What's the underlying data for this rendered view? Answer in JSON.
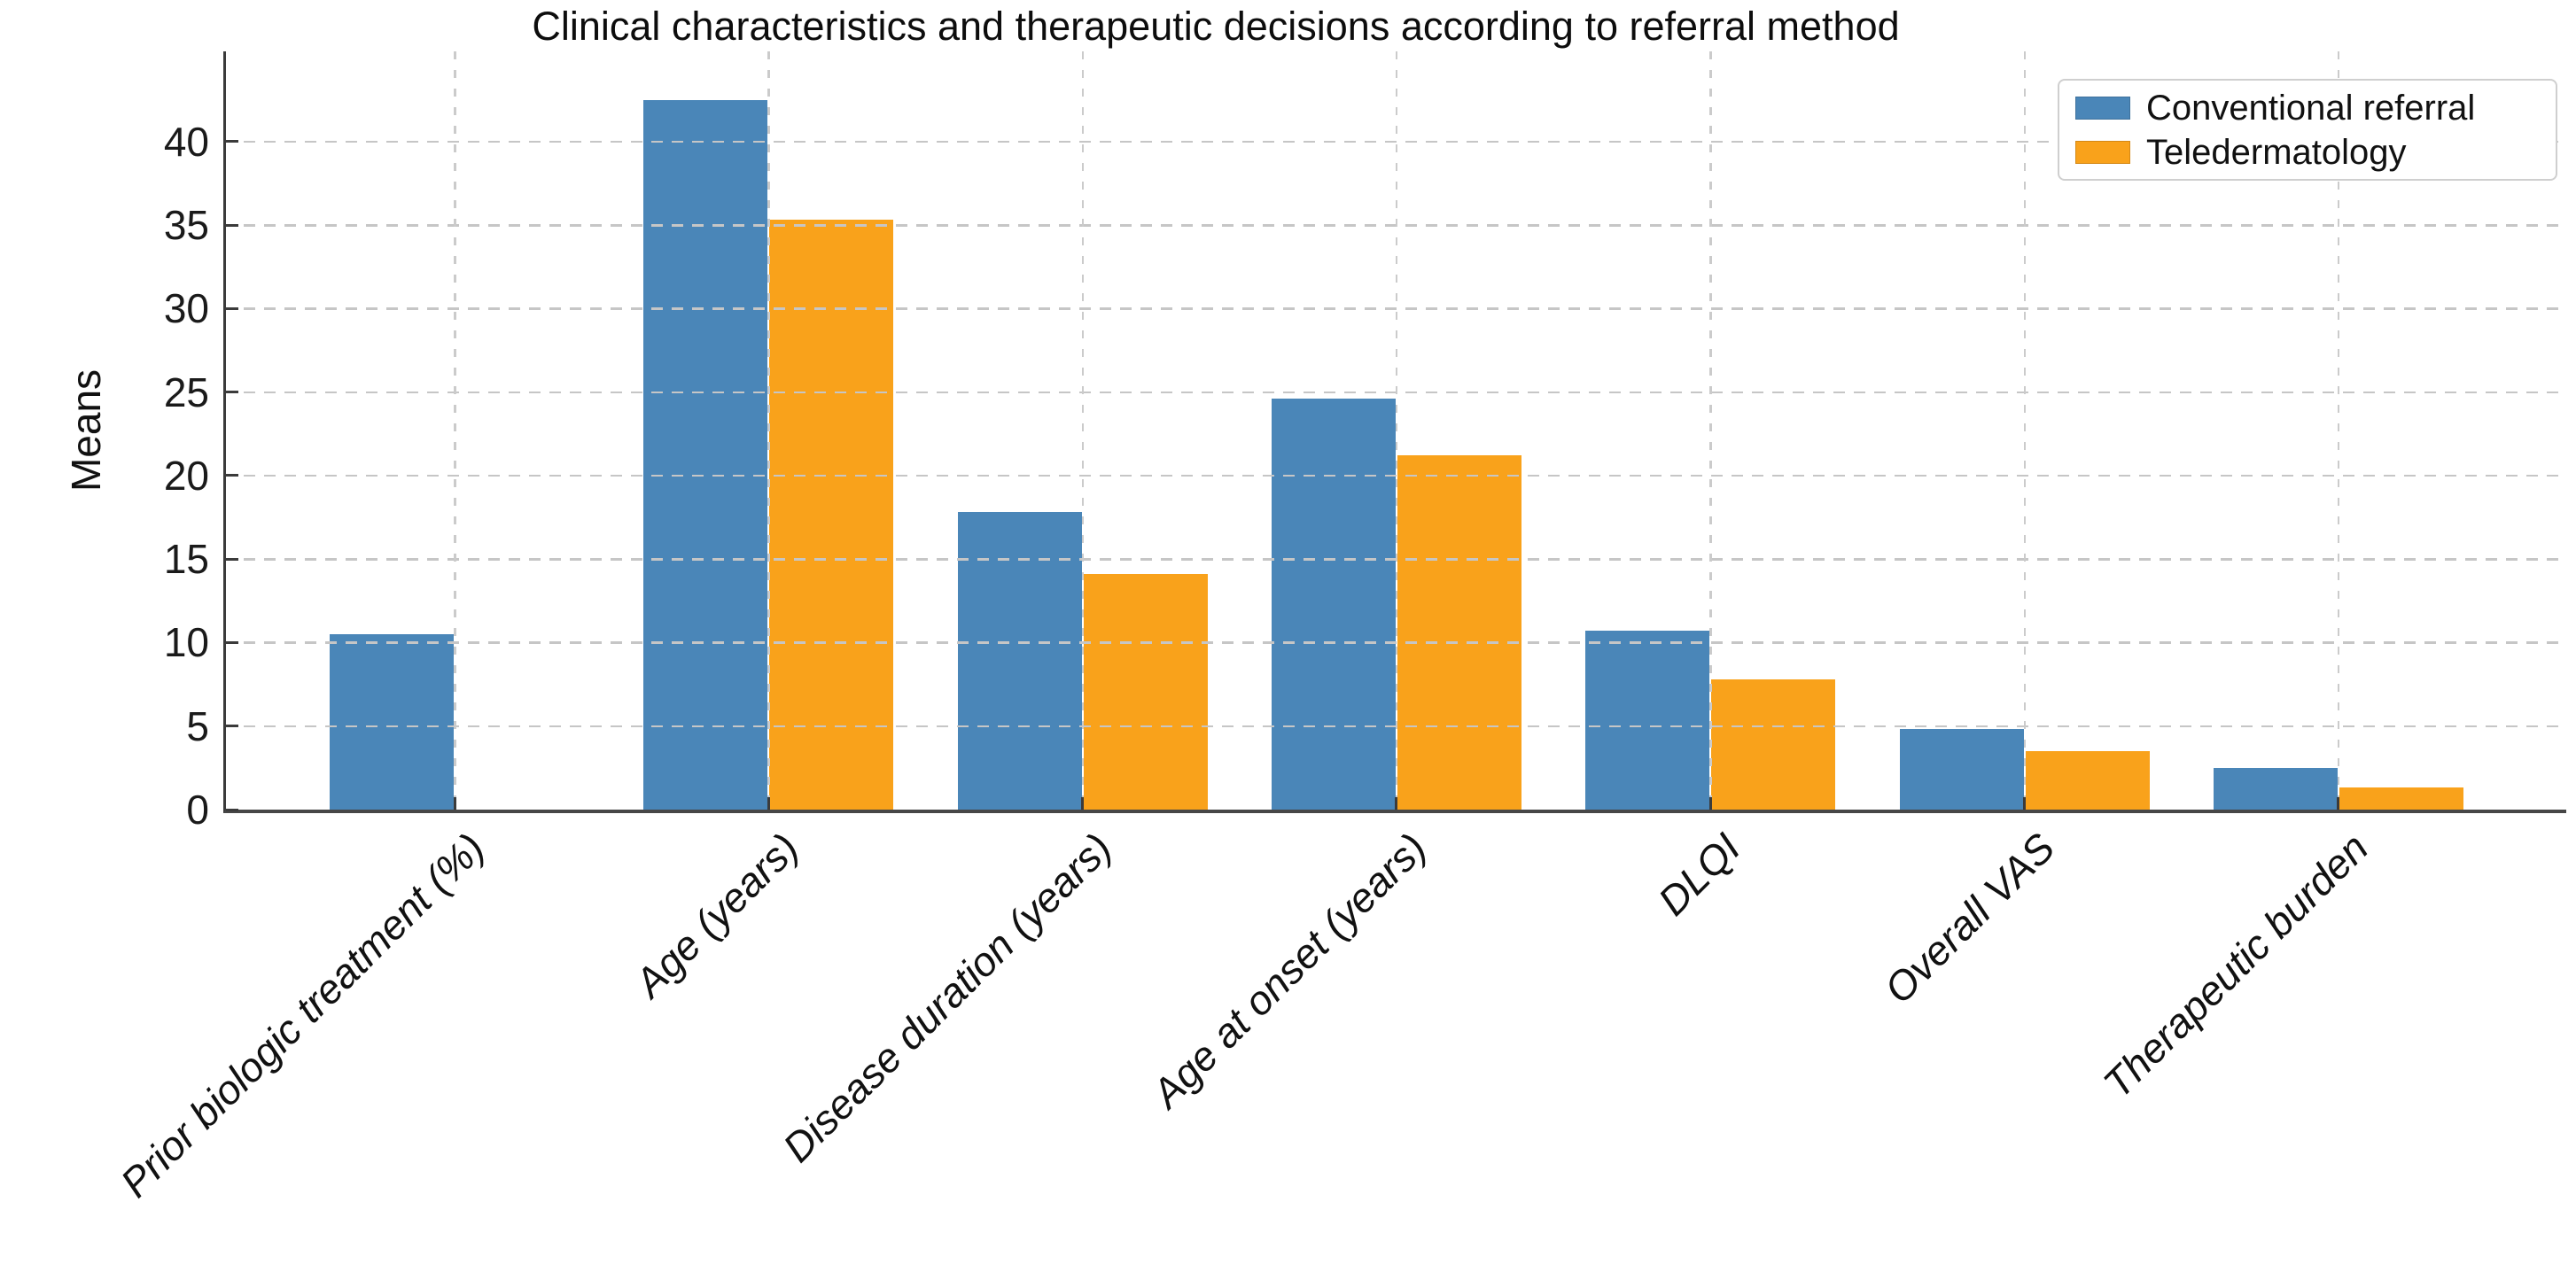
{
  "chart_data": {
    "type": "bar",
    "title": "Clinical characteristics and therapeutic decisions according to referral method",
    "xlabel": "",
    "ylabel": "Means",
    "categories": [
      "Prior biologic treatment (%)",
      "Age (years)",
      "Disease duration (years)",
      "Age at onset (years)",
      "DLQI",
      "Overall VAS",
      "Therapeutic burden"
    ],
    "series": [
      {
        "name": "Conventional referral",
        "color": "#4A86B8",
        "values": [
          10.5,
          42.5,
          17.8,
          24.6,
          10.7,
          4.8,
          2.5
        ]
      },
      {
        "name": "Teledermatology",
        "color": "#F9A21B",
        "values": [
          0,
          35.3,
          14.1,
          21.2,
          7.8,
          3.5,
          1.3
        ]
      }
    ],
    "y_ticks": [
      0,
      5,
      10,
      15,
      20,
      25,
      30,
      35,
      40
    ],
    "ylim": [
      0,
      45.4
    ],
    "grid": {
      "show": true,
      "style": "dashed",
      "color": "#c6c6c6",
      "axes": "both",
      "drawn_over_bars": true
    },
    "legend": {
      "position": "top-right",
      "border_color": "#cfcfcf",
      "background": "#ffffff"
    },
    "axis": {
      "spine_color": "#3b3b3b",
      "text_color": "#1a1a1a",
      "tick_direction": "in",
      "x_label_rotation_deg": 45,
      "x_labels_italic": true
    }
  }
}
